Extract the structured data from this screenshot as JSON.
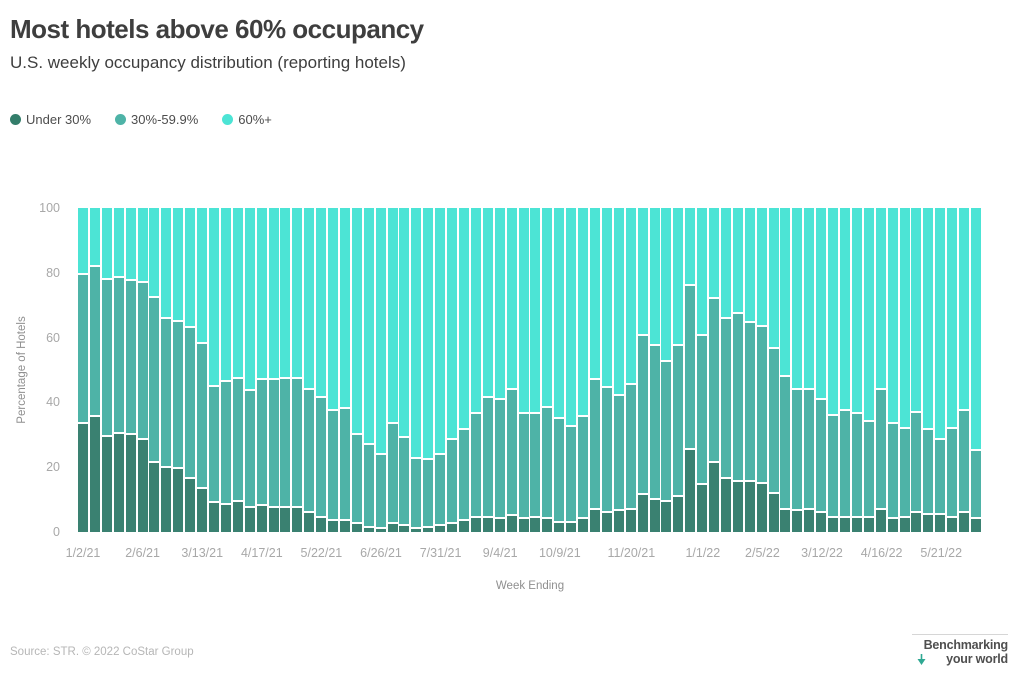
{
  "header": {
    "title": "Most hotels above 60% occupancy",
    "subtitle": "U.S. weekly occupancy distribution (reporting hotels)"
  },
  "legend": [
    {
      "label": "Under 30%",
      "color": "#337d6a"
    },
    {
      "label": "30%-59.9%",
      "color": "#4eb3a7"
    },
    {
      "label": "60%+",
      "color": "#4ce4d5"
    }
  ],
  "chart_data": {
    "type": "bar",
    "stacked": true,
    "title": "Most hotels above 60% occupancy",
    "subtitle": "U.S. weekly occupancy distribution (reporting hotels)",
    "xlabel": "Week Ending",
    "ylabel": "Percentage of Hotels",
    "ylim": [
      0,
      100
    ],
    "yticks": [
      0,
      20,
      40,
      60,
      80,
      100
    ],
    "categories": [
      "1/2/21",
      "1/9/21",
      "1/16/21",
      "1/23/21",
      "1/30/21",
      "2/6/21",
      "2/13/21",
      "2/20/21",
      "2/27/21",
      "3/6/21",
      "3/13/21",
      "3/20/21",
      "3/27/21",
      "4/3/21",
      "4/10/21",
      "4/17/21",
      "4/24/21",
      "5/1/21",
      "5/8/21",
      "5/15/21",
      "5/22/21",
      "5/29/21",
      "6/5/21",
      "6/12/21",
      "6/19/21",
      "6/26/21",
      "7/3/21",
      "7/10/21",
      "7/17/21",
      "7/24/21",
      "7/31/21",
      "8/7/21",
      "8/14/21",
      "8/21/21",
      "8/28/21",
      "9/4/21",
      "9/11/21",
      "9/18/21",
      "9/25/21",
      "10/2/21",
      "10/9/21",
      "10/16/21",
      "10/23/21",
      "10/30/21",
      "11/6/21",
      "11/13/21",
      "11/20/21",
      "11/27/21",
      "12/4/21",
      "12/11/21",
      "12/18/21",
      "12/25/21",
      "1/1/22",
      "1/8/22",
      "1/15/22",
      "1/22/22",
      "1/29/22",
      "2/5/22",
      "2/12/22",
      "2/19/22",
      "2/26/22",
      "3/5/22",
      "3/12/22",
      "3/19/22",
      "3/26/22",
      "4/2/22",
      "4/9/22",
      "4/16/22",
      "4/23/22",
      "4/30/22",
      "5/7/22",
      "5/14/22",
      "5/21/22",
      "5/28/22",
      "6/4/22",
      "6/11/22"
    ],
    "xtick_indices": [
      0,
      5,
      10,
      15,
      20,
      25,
      30,
      35,
      40,
      46,
      52,
      57,
      62,
      67,
      72
    ],
    "xtick_labels": [
      "1/2/21",
      "2/6/21",
      "3/13/21",
      "4/17/21",
      "5/22/21",
      "6/26/21",
      "7/31/21",
      "9/4/21",
      "10/9/21",
      "11/20/21",
      "1/1/22",
      "2/5/22",
      "3/12/22",
      "4/16/22",
      "5/21/22"
    ],
    "series": [
      {
        "name": "Under 30%",
        "color": "#3a8171",
        "values": [
          34,
          36,
          30,
          31,
          30.5,
          29,
          22,
          20.5,
          20,
          17,
          14,
          9.5,
          9,
          10,
          8,
          8.5,
          8,
          8,
          8,
          6.5,
          5,
          4,
          4,
          3,
          2,
          1.5,
          3,
          2.5,
          1.5,
          2,
          2.5,
          3,
          4,
          5,
          5,
          4.5,
          5.5,
          4.5,
          5,
          4.5,
          3.5,
          3.5,
          4.5,
          7.5,
          6.5,
          7,
          7.5,
          12,
          10.5,
          10,
          11.5,
          26,
          15,
          22,
          17,
          16,
          16,
          15.5,
          12.5,
          7.5,
          7,
          7.5,
          6.5,
          5,
          5,
          5,
          5,
          7.5,
          4.5,
          5,
          6.5,
          6,
          6,
          5,
          6.5,
          4.5
        ]
      },
      {
        "name": "30%-59.9%",
        "color": "#4eb3a7",
        "values": [
          46,
          46.5,
          48.5,
          48,
          47.5,
          48.5,
          51,
          46,
          45.5,
          46.5,
          44.5,
          36,
          38,
          38,
          36,
          39,
          39.5,
          40,
          40,
          38,
          37,
          34,
          34.5,
          27.5,
          25.5,
          23,
          31,
          27,
          21.5,
          21,
          22,
          26,
          28,
          32,
          37,
          37,
          39,
          32.5,
          32,
          34.5,
          32,
          29.5,
          31.5,
          40,
          38.5,
          35.5,
          38.5,
          49,
          47.5,
          43,
          46.5,
          50.5,
          46,
          50.5,
          49.5,
          52,
          49,
          48.5,
          44.5,
          41,
          37.5,
          37,
          35,
          31.5,
          33,
          32,
          29.5,
          37,
          29.5,
          27.5,
          31,
          26,
          23,
          27.5,
          31.5,
          21
        ]
      },
      {
        "name": "60%+",
        "color": "#4ce4d5",
        "values": [
          20,
          17.5,
          21.5,
          21,
          22,
          22.5,
          27,
          33.5,
          34.5,
          36.5,
          41.5,
          54.5,
          53,
          52,
          56,
          52.5,
          52.5,
          52,
          52,
          55.5,
          58,
          62,
          61.5,
          69.5,
          72.5,
          75.5,
          66,
          70.5,
          77,
          77,
          75.5,
          71,
          68,
          63,
          58,
          58.5,
          55.5,
          63,
          63,
          61,
          64.5,
          67,
          64,
          52.5,
          55,
          57.5,
          54,
          39,
          42,
          47,
          42,
          23.5,
          39,
          27.5,
          33.5,
          32,
          35,
          36,
          43,
          51.5,
          55.5,
          55.5,
          58.5,
          63.5,
          62,
          63,
          65.5,
          55.5,
          66,
          67.5,
          62.5,
          68,
          71,
          67.5,
          62,
          74.5
        ]
      }
    ],
    "legend_position": "top-left",
    "grid": false
  },
  "footer": {
    "source": "Source: STR. © 2022 CoStar Group",
    "logo_line1": "Benchmarking",
    "logo_line2": "your world",
    "logo_color": "#2fa893"
  }
}
